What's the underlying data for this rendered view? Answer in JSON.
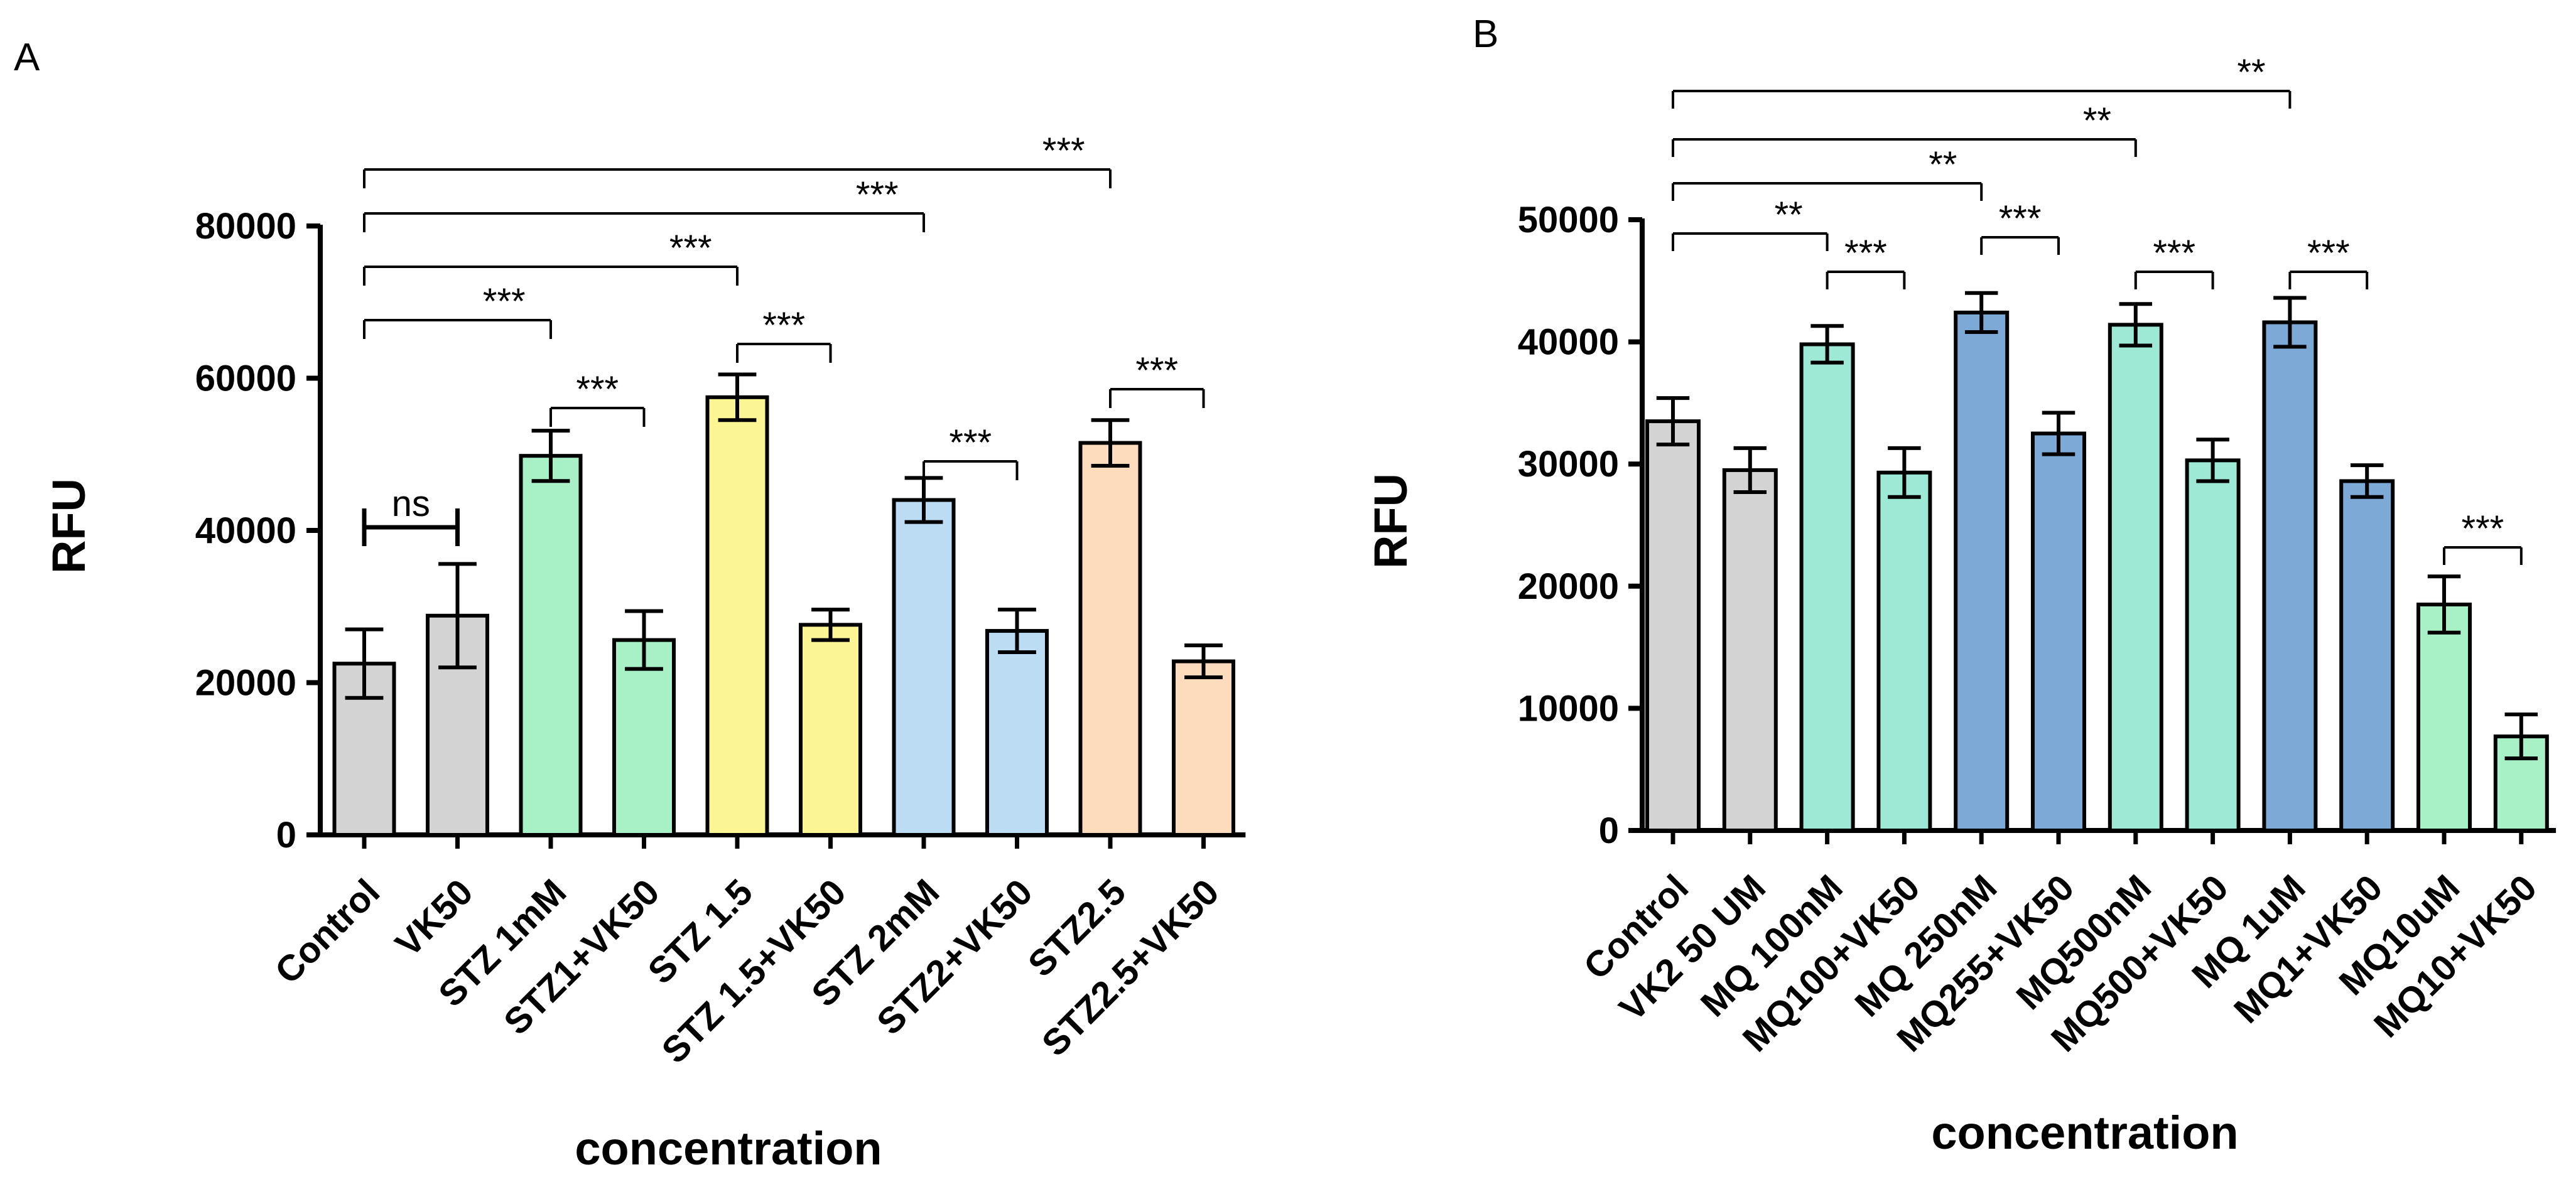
{
  "chart_data": [
    {
      "panel": "A",
      "type": "bar",
      "xlabel": "concentration",
      "ylabel": "RFU",
      "ylim": [
        0,
        80000
      ],
      "yticks": [
        "0",
        "20000",
        "40000",
        "60000",
        "80000"
      ],
      "categories": [
        "Control",
        "VK50",
        "STZ 1mM",
        "STZ1+VK50",
        "STZ 1.5",
        "STZ 1.5+VK50",
        "STZ 2mM",
        "STZ2+VK50",
        "STZ2.5",
        "STZ2.5+VK50"
      ],
      "values": [
        22500,
        28800,
        49800,
        25600,
        57500,
        27600,
        44000,
        26800,
        51500,
        22800
      ],
      "errors": [
        4500,
        6800,
        3300,
        3800,
        3000,
        2000,
        2900,
        2800,
        3000,
        2100
      ],
      "colors": [
        "#d3d3d3",
        "#d3d3d3",
        "#a8f0c6",
        "#a8f0c6",
        "#fbf594",
        "#fbf594",
        "#bcdcf4",
        "#bcdcf4",
        "#fcdcbc",
        "#fcdcbc"
      ],
      "significance": [
        {
          "from": 0,
          "to": 1,
          "label": "ns"
        },
        {
          "from": 2,
          "to": 3,
          "label": "***"
        },
        {
          "from": 4,
          "to": 5,
          "label": "***"
        },
        {
          "from": 6,
          "to": 7,
          "label": "***"
        },
        {
          "from": 8,
          "to": 9,
          "label": "***"
        },
        {
          "from": 0,
          "to": 2,
          "label": "***"
        },
        {
          "from": 0,
          "to": 4,
          "label": "***"
        },
        {
          "from": 0,
          "to": 6,
          "label": "***"
        },
        {
          "from": 0,
          "to": 8,
          "label": "***"
        }
      ]
    },
    {
      "panel": "B",
      "type": "bar",
      "xlabel": "concentration",
      "ylabel": "RFU",
      "ylim": [
        0,
        50000
      ],
      "yticks": [
        "0",
        "10000",
        "20000",
        "30000",
        "40000",
        "50000"
      ],
      "categories": [
        "Control",
        "VK2 50 UM",
        "MQ 100nM",
        "MQ100+VK50",
        "MQ 250nM",
        "MQ255+VK50",
        "MQ500nM",
        "MQ500+VK50",
        "MQ 1uM",
        "MQ1+VK50",
        "MQ10uM",
        "MQ10+VK50"
      ],
      "values": [
        33500,
        29500,
        39800,
        29300,
        42400,
        32500,
        41400,
        30300,
        41600,
        28600,
        18500,
        7700
      ],
      "errors": [
        1900,
        1800,
        1500,
        2000,
        1600,
        1700,
        1700,
        1700,
        2000,
        1300,
        2300,
        1800
      ],
      "colors": [
        "#d3d3d3",
        "#d3d3d3",
        "#9ee8d6",
        "#9ee8d6",
        "#7ca9d6",
        "#7ca9d6",
        "#9ee8d6",
        "#9ee8d6",
        "#7ca9d6",
        "#7ca9d6",
        "#a8f0c6",
        "#a8f0c6"
      ],
      "significance": [
        {
          "from": 2,
          "to": 3,
          "label": "***"
        },
        {
          "from": 4,
          "to": 5,
          "label": "***"
        },
        {
          "from": 6,
          "to": 7,
          "label": "***"
        },
        {
          "from": 8,
          "to": 9,
          "label": "***"
        },
        {
          "from": 10,
          "to": 11,
          "label": "***"
        },
        {
          "from": 0,
          "to": 2,
          "label": "**"
        },
        {
          "from": 0,
          "to": 4,
          "label": "**"
        },
        {
          "from": 0,
          "to": 6,
          "label": "**"
        },
        {
          "from": 0,
          "to": 8,
          "label": "**"
        }
      ]
    }
  ]
}
